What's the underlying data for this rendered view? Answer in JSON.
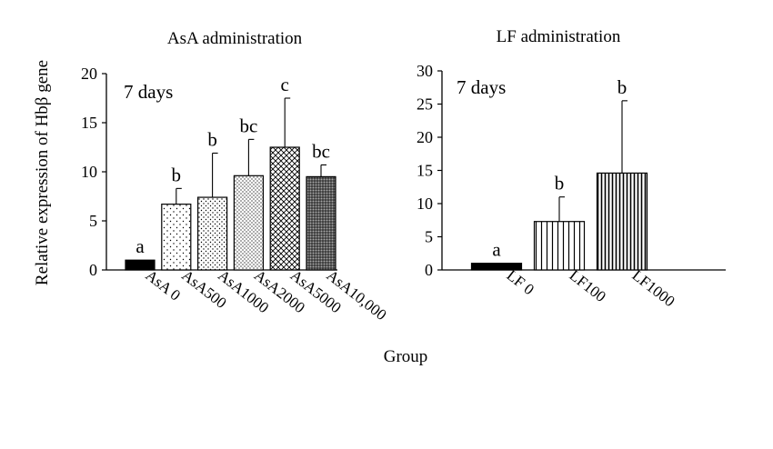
{
  "shared": {
    "ylabel": "Relative expression of Hbβ gene",
    "xlabel": "Group"
  },
  "chart_data": [
    {
      "type": "bar",
      "title": "AsA administration",
      "annotation": "7 days",
      "ylim": [
        0,
        20
      ],
      "yticks": [
        "0",
        "5",
        "10",
        "15",
        "20"
      ],
      "grid": false,
      "categories": [
        "AsA 0",
        "AsA500",
        "AsA1000",
        "AsA2000",
        "AsA5000",
        "AsA10,000"
      ],
      "values": [
        1.0,
        6.7,
        7.4,
        9.6,
        12.5,
        9.5
      ],
      "error": [
        0.0,
        1.6,
        4.5,
        3.7,
        5.0,
        1.2
      ],
      "labels": [
        "a",
        "b",
        "b",
        "bc",
        "c",
        "bc"
      ],
      "patterns": [
        "solid",
        "sparse-dots",
        "dense-dots",
        "fine-dots",
        "crosshatch",
        "dark-dots"
      ]
    },
    {
      "type": "bar",
      "title": "LF administration",
      "annotation": "7 days",
      "ylim": [
        0,
        30
      ],
      "yticks": [
        "0",
        "5",
        "10",
        "15",
        "20",
        "25",
        "30"
      ],
      "grid": false,
      "categories": [
        "LF 0",
        "LF100",
        "LF1000"
      ],
      "values": [
        1.0,
        7.3,
        14.6
      ],
      "error": [
        0.0,
        3.7,
        10.9
      ],
      "labels": [
        "a",
        "b",
        "b"
      ],
      "patterns": [
        "solid",
        "vlines-wide",
        "vlines-dense"
      ]
    }
  ]
}
